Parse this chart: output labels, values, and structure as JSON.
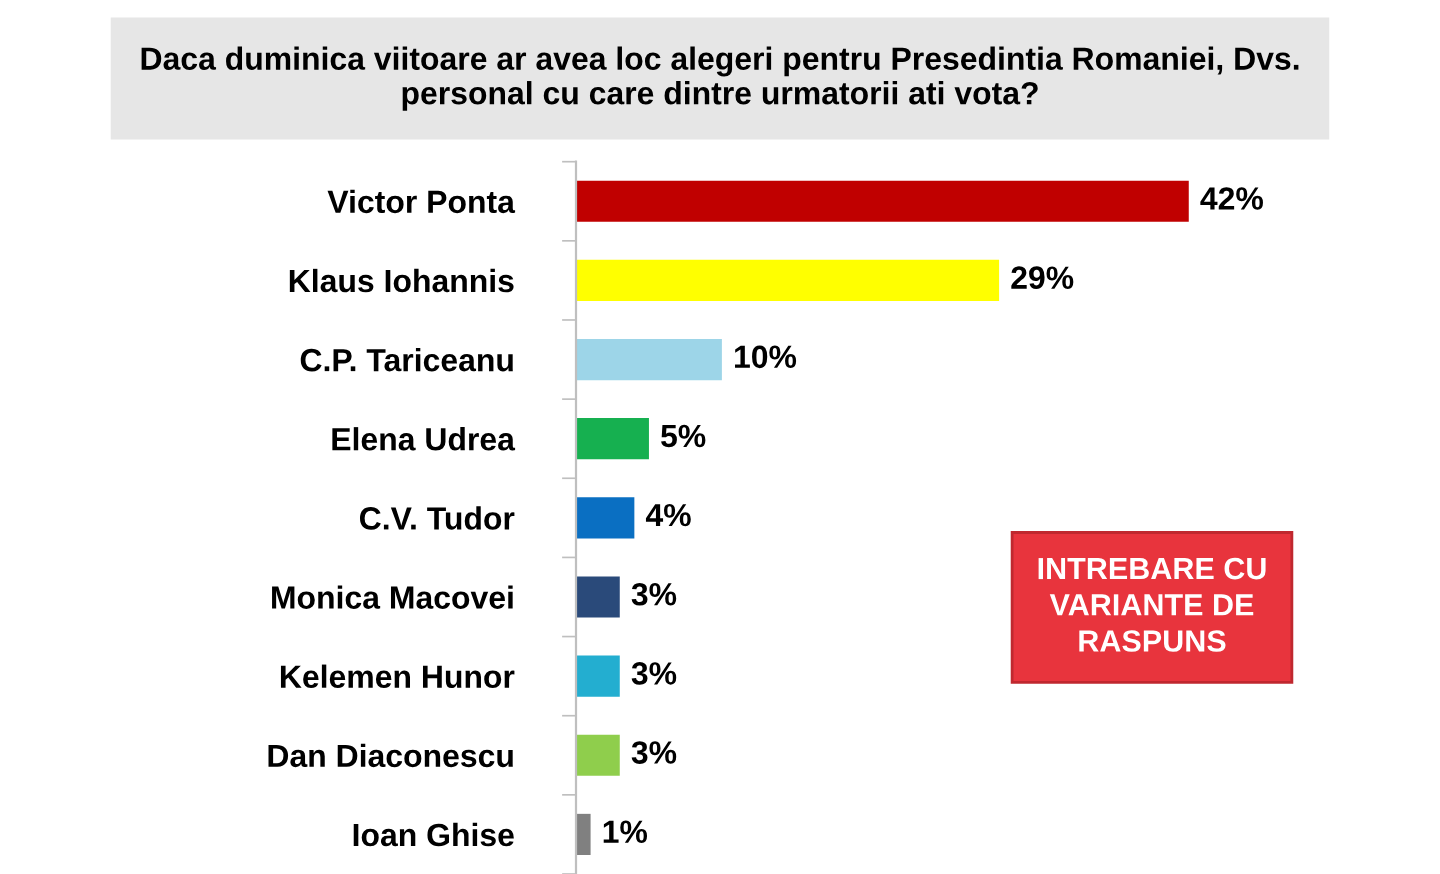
{
  "chart_data": {
    "type": "bar",
    "orientation": "horizontal",
    "title": "Daca duminica viitoare ar avea loc alegeri pentru Presedintia Romaniei, Dvs.\npersonal cu care dintre urmatorii ati vota?",
    "categories": [
      "Victor Ponta",
      "Klaus Iohannis",
      "C.P. Tariceanu",
      "Elena Udrea",
      "C.V. Tudor",
      "Monica Macovei",
      "Kelemen Hunor",
      "Dan Diaconescu",
      "Ioan Ghise"
    ],
    "values": [
      42,
      29,
      10,
      5,
      4,
      3,
      3,
      3,
      1
    ],
    "colors": [
      "#c00000",
      "#ffff00",
      "#9dd5e8",
      "#16b050",
      "#0a6fc2",
      "#2a4a7a",
      "#23aed0",
      "#8fce4c",
      "#808080"
    ],
    "value_labels": [
      "42%",
      "29%",
      "10%",
      "5%",
      "4%",
      "3%",
      "3%",
      "3%",
      "1%"
    ],
    "annotations": [
      "INTREBARE CU\nVARIANTE DE\nRASPUNS"
    ],
    "grid": false,
    "legend": false
  }
}
